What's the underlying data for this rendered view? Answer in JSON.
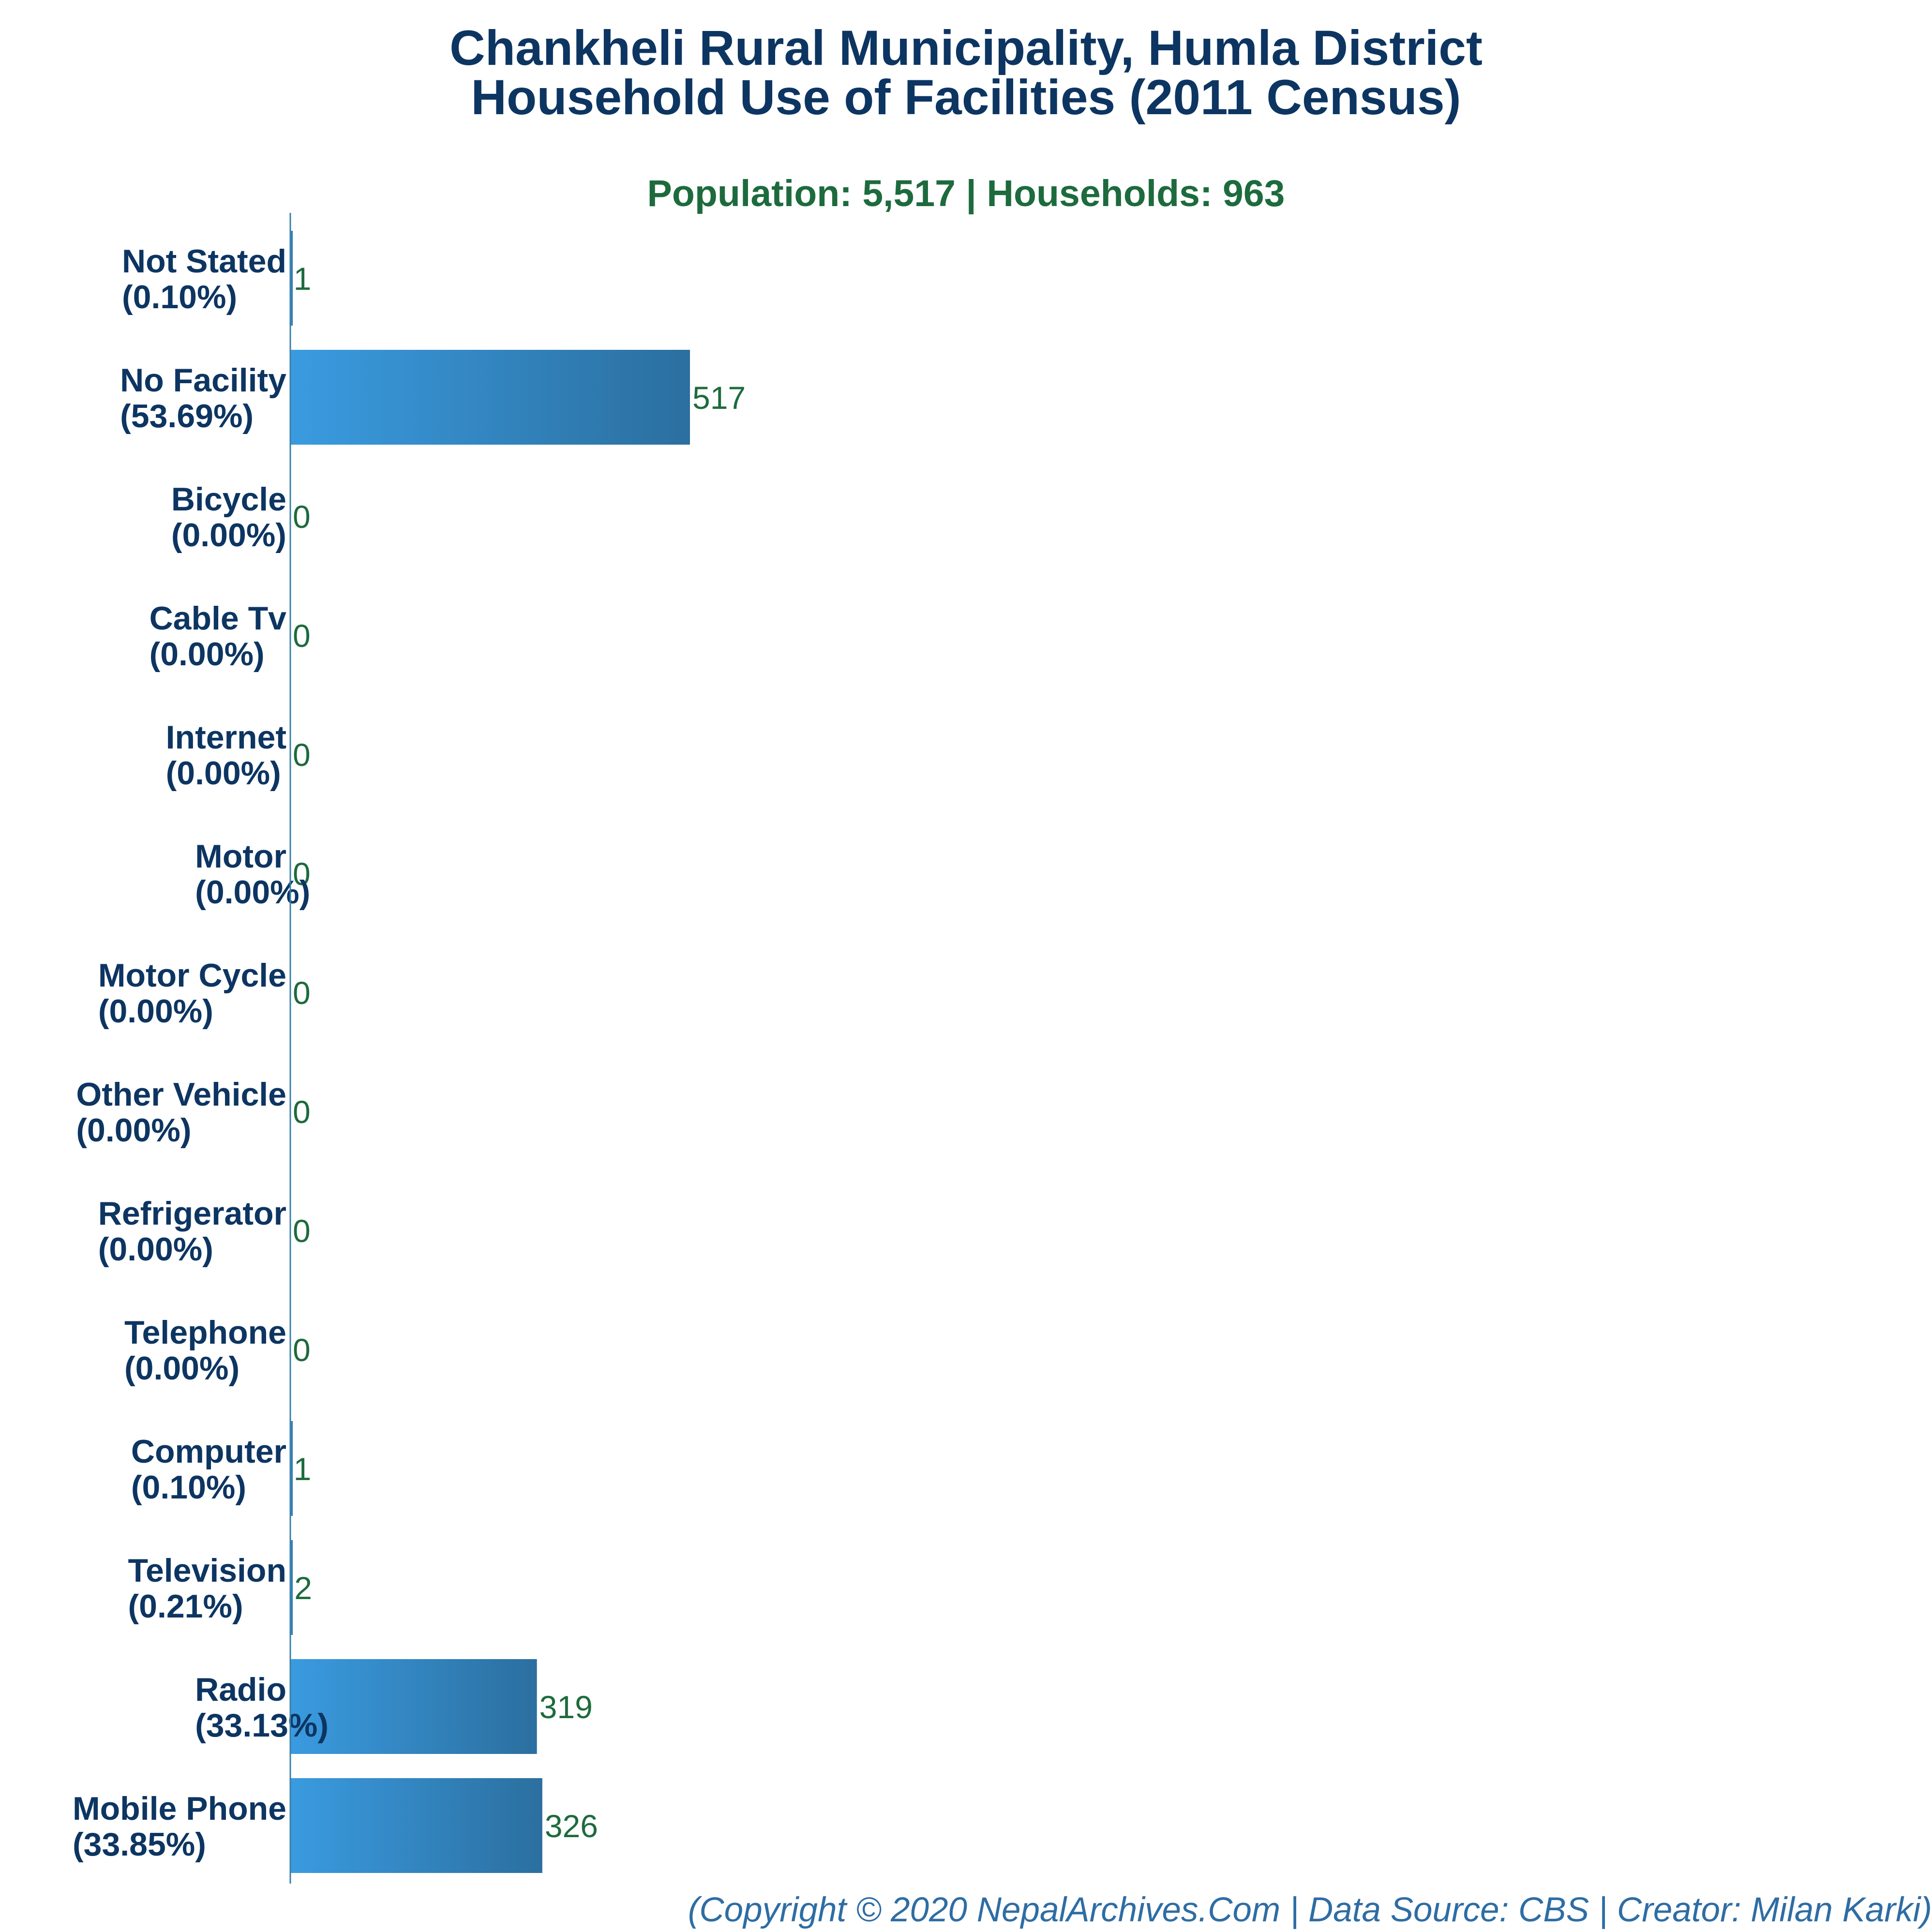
{
  "chart_data": {
    "type": "bar",
    "orientation": "horizontal",
    "title": [
      "Chankheli Rural Municipality, Humla District",
      "Household Use of Facilities (2011 Census)"
    ],
    "subtitle": "Population: 5,517 | Households: 963",
    "categories": [
      {
        "name": "Not Stated",
        "pct": "(0.10%)"
      },
      {
        "name": "No Facility",
        "pct": "(53.69%)"
      },
      {
        "name": "Bicycle",
        "pct": "(0.00%)"
      },
      {
        "name": "Cable Tv",
        "pct": "(0.00%)"
      },
      {
        "name": "Internet",
        "pct": "(0.00%)"
      },
      {
        "name": "Motor",
        "pct": "(0.00%)"
      },
      {
        "name": "Motor Cycle",
        "pct": "(0.00%)"
      },
      {
        "name": "Other Vehicle",
        "pct": "(0.00%)"
      },
      {
        "name": "Refrigerator",
        "pct": "(0.00%)"
      },
      {
        "name": "Telephone",
        "pct": "(0.00%)"
      },
      {
        "name": "Computer",
        "pct": "(0.10%)"
      },
      {
        "name": "Television",
        "pct": "(0.21%)"
      },
      {
        "name": "Radio",
        "pct": "(33.13%)"
      },
      {
        "name": "Mobile Phone",
        "pct": "(33.85%)"
      }
    ],
    "values": [
      1,
      517,
      0,
      0,
      0,
      0,
      0,
      0,
      0,
      0,
      1,
      2,
      319,
      326
    ],
    "colors": {
      "bar_start": "#3a9be0",
      "bar_end": "#2b6f9f",
      "value_label": "#1d6b3d",
      "category_label": "#0d3562",
      "axis": "#3a7fa8"
    },
    "grid": false,
    "legend": "none"
  },
  "footer": "(Copyright © 2020 NepalArchives.Com | Data Source: CBS | Creator: Milan Karki)"
}
